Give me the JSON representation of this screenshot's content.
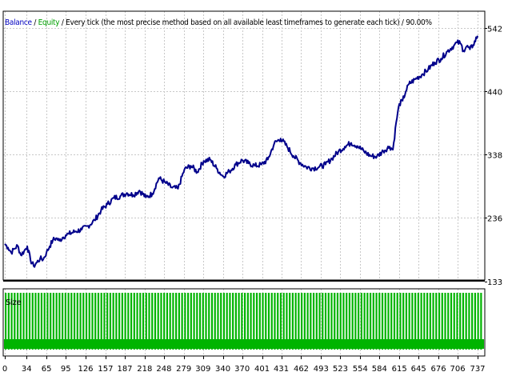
{
  "header": {
    "balance_label": "Balance",
    "sep": " / ",
    "equity_label": "Equity",
    "description": " / Every tick (the most precise method based on all available least timeframes to generate each tick) / 90.00%"
  },
  "colors": {
    "balance": "#00008b",
    "equity": "#00a000",
    "size_bars": "#00b400",
    "grid": "#c8c8c8",
    "frame": "#000000"
  },
  "chart_data": {
    "type": "line",
    "series": [
      {
        "name": "Balance",
        "x": [
          0,
          5,
          10,
          15,
          20,
          25,
          30,
          35,
          40,
          45,
          50,
          55,
          60,
          65,
          70,
          75,
          80,
          85,
          90,
          95,
          100,
          110,
          120,
          130,
          140,
          150,
          160,
          170,
          180,
          190,
          200,
          210,
          220,
          230,
          240,
          250,
          260,
          270,
          280,
          290,
          300,
          310,
          320,
          330,
          340,
          350,
          360,
          370,
          380,
          390,
          400,
          410,
          420,
          430,
          440,
          450,
          460,
          470,
          480,
          490,
          500,
          510,
          520,
          530,
          540,
          550,
          560,
          570,
          580,
          590,
          600,
          605,
          610,
          615,
          620,
          625,
          630,
          640,
          650,
          660,
          670,
          680,
          690,
          700,
          705,
          710,
          715,
          720,
          725,
          730,
          737
        ],
        "values": [
          194,
          188,
          180,
          186,
          191,
          176,
          182,
          190,
          168,
          158,
          164,
          170,
          169,
          180,
          190,
          200,
          203,
          199,
          204,
          208,
          210,
          214,
          217,
          223,
          232,
          248,
          258,
          268,
          271,
          276,
          273,
          280,
          269,
          275,
          300,
          293,
          285,
          283,
          314,
          320,
          310,
          328,
          330,
          316,
          303,
          311,
          322,
          329,
          324,
          320,
          322,
          330,
          356,
          364,
          351,
          336,
          325,
          318,
          316,
          318,
          322,
          332,
          343,
          351,
          357,
          352,
          343,
          336,
          335,
          344,
          351,
          346,
          390,
          420,
          425,
          440,
          452,
          460,
          467,
          476,
          487,
          493,
          505,
          514,
          519,
          518,
          506,
          513,
          508,
          515,
          530
        ]
      }
    ],
    "yticks": [
      133,
      236,
      338,
      440,
      542
    ],
    "xticks": [
      0,
      34,
      65,
      95,
      126,
      157,
      187,
      218,
      248,
      279,
      309,
      340,
      370,
      401,
      431,
      462,
      493,
      523,
      554,
      584,
      615,
      645,
      676,
      706,
      737
    ],
    "ylim": [
      133,
      580
    ],
    "xlim": [
      0,
      737
    ],
    "grid": true,
    "subpanels": [
      {
        "label": "Size",
        "type": "bar",
        "value_each": 1,
        "count": 160
      }
    ]
  }
}
